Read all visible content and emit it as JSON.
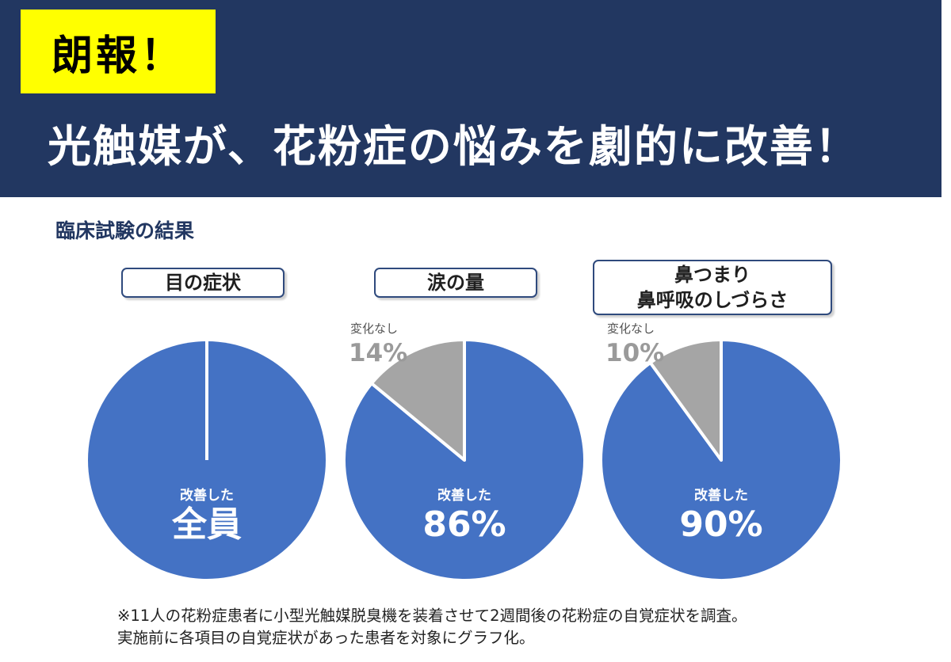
{
  "header": {
    "badge": "朗報！",
    "headline": "光触媒が、花粉症の悩みを劇的に改善！"
  },
  "section_title": "臨床試験の結果",
  "colors": {
    "header_bg": "#223761",
    "badge_bg": "#ffff00",
    "improved": "#4472c4",
    "unchanged": "#a5a5a5",
    "unchanged_text": "#9a9a9a"
  },
  "chart_data": [
    {
      "type": "pie",
      "title_lines": [
        "目の症状"
      ],
      "slices": [
        {
          "label": "改善した",
          "value": 100,
          "display": "全員"
        }
      ]
    },
    {
      "type": "pie",
      "title_lines": [
        "涙の量"
      ],
      "slices": [
        {
          "label": "改善した",
          "value": 86,
          "display": "86%"
        },
        {
          "label": "変化なし",
          "value": 14,
          "display": "14%"
        }
      ]
    },
    {
      "type": "pie",
      "title_lines": [
        "鼻つまり",
        "鼻呼吸のしづらさ"
      ],
      "slices": [
        {
          "label": "改善した",
          "value": 90,
          "display": "90%"
        },
        {
          "label": "変化なし",
          "value": 10,
          "display": "10%"
        }
      ]
    }
  ],
  "footnote": {
    "line1": "※11人の花粉症患者に小型光触媒脱臭機を装着させて2週間後の花粉症の自覚症状を調査。",
    "line2": "実施前に各項目の自覚症状があった患者を対象にグラフ化。"
  }
}
